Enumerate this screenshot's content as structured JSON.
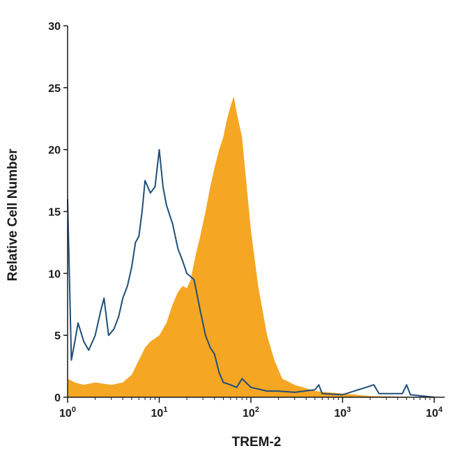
{
  "chart_data": {
    "type": "area",
    "xlabel": "TREM-2",
    "ylabel": "Relative Cell Number",
    "xscale": "log",
    "xlim": [
      1,
      10000
    ],
    "ylim": [
      0,
      30
    ],
    "grid": false,
    "x_tick_labels": [
      {
        "value": 1,
        "base": "10",
        "exp": "0"
      },
      {
        "value": 10,
        "base": "10",
        "exp": "1"
      },
      {
        "value": 100,
        "base": "10",
        "exp": "2"
      },
      {
        "value": 1000,
        "base": "10",
        "exp": "3"
      },
      {
        "value": 10000,
        "base": "10",
        "exp": "4"
      }
    ],
    "y_ticks": [
      0,
      5,
      10,
      15,
      20,
      25,
      30
    ],
    "y_tick_labels": [
      "0",
      "5",
      "10",
      "15",
      "20",
      "25",
      "30"
    ],
    "series": [
      {
        "style": "filled",
        "color": "#f5a623",
        "points": [
          [
            1.0,
            1.5
          ],
          [
            1.2,
            1.2
          ],
          [
            1.5,
            1.0
          ],
          [
            2.0,
            1.2
          ],
          [
            3.0,
            1.0
          ],
          [
            4.0,
            1.2
          ],
          [
            5.0,
            1.8
          ],
          [
            6.0,
            3.0
          ],
          [
            7.0,
            4.0
          ],
          [
            8.0,
            4.5
          ],
          [
            10.0,
            5.0
          ],
          [
            12.0,
            6.0
          ],
          [
            14.0,
            7.5
          ],
          [
            16.0,
            8.5
          ],
          [
            18.0,
            9.0
          ],
          [
            20.0,
            8.8
          ],
          [
            22.0,
            9.5
          ],
          [
            25.0,
            11.5
          ],
          [
            28.0,
            13.0
          ],
          [
            32.0,
            15.0
          ],
          [
            36.0,
            17.0
          ],
          [
            40.0,
            18.5
          ],
          [
            45.0,
            20.0
          ],
          [
            50.0,
            21.0
          ],
          [
            55.0,
            22.5
          ],
          [
            60.0,
            23.5
          ],
          [
            65.0,
            24.3
          ],
          [
            70.0,
            23.0
          ],
          [
            80.0,
            21.0
          ],
          [
            90.0,
            17.0
          ],
          [
            100.0,
            13.5
          ],
          [
            120.0,
            9.0
          ],
          [
            150.0,
            5.0
          ],
          [
            180.0,
            3.0
          ],
          [
            220.0,
            1.5
          ],
          [
            300.0,
            1.0
          ],
          [
            500.0,
            0.5
          ],
          [
            1000.0,
            0.3
          ],
          [
            2000.0,
            0.1
          ],
          [
            10000.0,
            0.0
          ]
        ]
      },
      {
        "style": "outline",
        "color": "#1f4e79",
        "points": [
          [
            1.0,
            16.0
          ],
          [
            1.1,
            3.0
          ],
          [
            1.2,
            4.5
          ],
          [
            1.3,
            6.0
          ],
          [
            1.5,
            4.5
          ],
          [
            1.7,
            3.8
          ],
          [
            2.0,
            5.0
          ],
          [
            2.3,
            7.0
          ],
          [
            2.5,
            8.0
          ],
          [
            2.8,
            5.0
          ],
          [
            3.2,
            5.5
          ],
          [
            3.6,
            6.5
          ],
          [
            4.0,
            8.0
          ],
          [
            4.5,
            9.0
          ],
          [
            5.0,
            10.5
          ],
          [
            5.5,
            12.5
          ],
          [
            6.0,
            13.0
          ],
          [
            6.5,
            15.0
          ],
          [
            7.0,
            17.5
          ],
          [
            8.0,
            16.5
          ],
          [
            9.0,
            17.0
          ],
          [
            10.0,
            20.0
          ],
          [
            11.0,
            17.0
          ],
          [
            12.0,
            15.5
          ],
          [
            14.0,
            14.0
          ],
          [
            16.0,
            12.0
          ],
          [
            18.0,
            11.0
          ],
          [
            20.0,
            10.0
          ],
          [
            24.0,
            9.5
          ],
          [
            28.0,
            7.0
          ],
          [
            32.0,
            5.0
          ],
          [
            36.0,
            4.0
          ],
          [
            40.0,
            3.5
          ],
          [
            45.0,
            2.0
          ],
          [
            50.0,
            1.2
          ],
          [
            60.0,
            1.0
          ],
          [
            70.0,
            0.8
          ],
          [
            80.0,
            1.5
          ],
          [
            100.0,
            0.8
          ],
          [
            150.0,
            0.5
          ],
          [
            200.0,
            0.5
          ],
          [
            300.0,
            0.4
          ],
          [
            500.0,
            0.6
          ],
          [
            550.0,
            1.0
          ],
          [
            600.0,
            0.3
          ],
          [
            1000.0,
            0.2
          ],
          [
            1800.0,
            0.8
          ],
          [
            2200.0,
            1.0
          ],
          [
            2500.0,
            0.3
          ],
          [
            4500.0,
            0.3
          ],
          [
            5000.0,
            1.0
          ],
          [
            5500.0,
            0.2
          ],
          [
            10000.0,
            0.0
          ]
        ]
      }
    ]
  }
}
